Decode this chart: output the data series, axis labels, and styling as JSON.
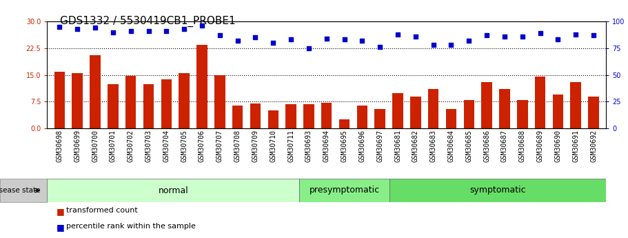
{
  "title": "GDS1332 / 5530419CB1_PROBE1",
  "categories": [
    "GSM30698",
    "GSM30699",
    "GSM30700",
    "GSM30701",
    "GSM30702",
    "GSM30703",
    "GSM30704",
    "GSM30705",
    "GSM30706",
    "GSM30707",
    "GSM30708",
    "GSM30709",
    "GSM30710",
    "GSM30711",
    "GSM30693",
    "GSM30694",
    "GSM30695",
    "GSM30696",
    "GSM30697",
    "GSM30681",
    "GSM30682",
    "GSM30683",
    "GSM30684",
    "GSM30685",
    "GSM30686",
    "GSM30687",
    "GSM30688",
    "GSM30689",
    "GSM30690",
    "GSM30691",
    "GSM30692"
  ],
  "bar_values": [
    16.0,
    15.5,
    20.5,
    12.5,
    14.8,
    12.5,
    13.8,
    15.5,
    23.5,
    15.0,
    6.5,
    7.0,
    5.0,
    6.8,
    6.8,
    7.2,
    2.5,
    6.5,
    5.5,
    10.0,
    9.0,
    11.0,
    5.5,
    8.0,
    13.0,
    11.0,
    8.0,
    14.5,
    9.5,
    13.0,
    9.0
  ],
  "dot_values": [
    95,
    93,
    94,
    90,
    91,
    91,
    91,
    93,
    96,
    87,
    82,
    85,
    80,
    83,
    75,
    84,
    83,
    82,
    76,
    88,
    86,
    78,
    78,
    82,
    87,
    86,
    86,
    89,
    83,
    88,
    87
  ],
  "groups": [
    {
      "label": "normal",
      "start": 0,
      "end": 14,
      "color": "#ccffcc"
    },
    {
      "label": "presymptomatic",
      "start": 14,
      "end": 19,
      "color": "#88ee88"
    },
    {
      "label": "symptomatic",
      "start": 19,
      "end": 31,
      "color": "#66dd66"
    }
  ],
  "bar_color": "#cc2200",
  "dot_color": "#0000cc",
  "ylim_left": [
    0,
    30
  ],
  "ylim_right": [
    0,
    100
  ],
  "yticks_left": [
    0,
    7.5,
    15,
    22.5,
    30
  ],
  "yticks_right": [
    0,
    25,
    50,
    75,
    100
  ],
  "hlines": [
    7.5,
    15,
    22.5
  ],
  "disease_state_label": "disease state",
  "legend_bar": "transformed count",
  "legend_dot": "percentile rank within the sample",
  "title_fontsize": 11,
  "tick_fontsize": 7,
  "group_label_fontsize": 9,
  "bar_width": 0.6,
  "fig_width": 9.11,
  "fig_height": 3.45,
  "dpi": 100
}
